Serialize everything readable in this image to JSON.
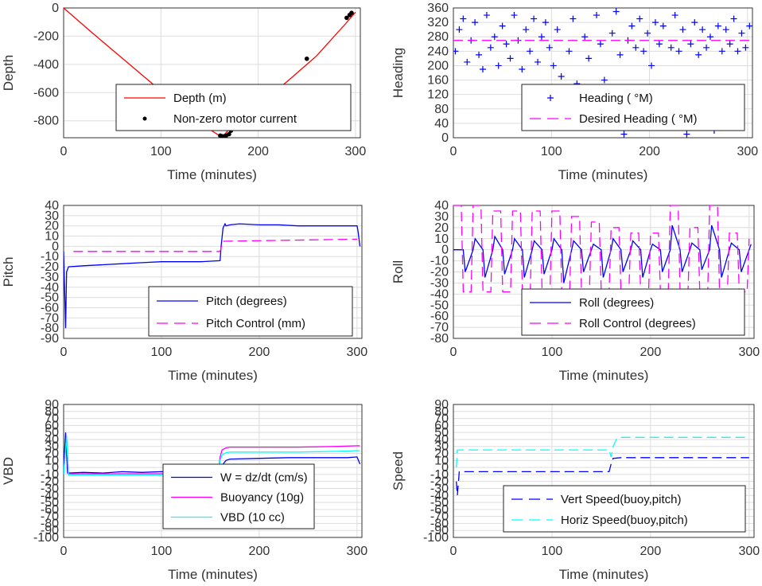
{
  "colors": {
    "depth": "#ff0000",
    "marker": "#000000",
    "primary": "#0000ff",
    "secondary": "#ff00ff",
    "tertiary": "#00ffff",
    "grid": "#dddddd",
    "axis": "#333333"
  },
  "chart_data": [
    {
      "id": "depth",
      "type": "line",
      "xlabel": "Time (minutes)",
      "ylabel": "Depth",
      "xlim": [
        0,
        305
      ],
      "ylim": [
        -920,
        0
      ],
      "xticks": [
        "0",
        "100",
        "200",
        "300"
      ],
      "yticks": [
        "0",
        "-200",
        "-400",
        "-600",
        "-800"
      ],
      "grid": true,
      "legend": {
        "placement": "lower-center",
        "entries": [
          "Depth (m)",
          "Non-zero motor current"
        ]
      },
      "series": [
        {
          "name": "Depth (m)",
          "style": "solid",
          "color": "#ff0000",
          "x": [
            0,
            30,
            60,
            90,
            120,
            150,
            160,
            165,
            170,
            200,
            230,
            260,
            290,
            300
          ],
          "y": [
            0,
            -180,
            -355,
            -530,
            -705,
            -860,
            -905,
            -900,
            -860,
            -690,
            -520,
            -340,
            -110,
            -30
          ]
        },
        {
          "name": "Non-zero motor current",
          "style": "marker",
          "color": "#000000",
          "x": [
            161,
            163,
            165,
            167,
            170,
            172,
            250,
            291,
            294,
            296
          ],
          "y": [
            -905,
            -910,
            -910,
            -905,
            -895,
            -870,
            -360,
            -70,
            -50,
            -35
          ]
        }
      ]
    },
    {
      "id": "heading",
      "type": "scatter",
      "xlabel": "Time (minutes)",
      "ylabel": "Heading",
      "xlim": [
        0,
        305
      ],
      "ylim": [
        0,
        360
      ],
      "xticks": [
        "0",
        "100",
        "200",
        "300"
      ],
      "yticks": [
        "0",
        "40",
        "80",
        "120",
        "160",
        "200",
        "240",
        "280",
        "320",
        "360"
      ],
      "grid": true,
      "legend": {
        "placement": "lower-center",
        "entries": [
          "Heading ( °M)",
          "Desired Heading ( °M)"
        ]
      },
      "series": [
        {
          "name": "Heading ( °M)",
          "style": "plus",
          "color": "#0000ff",
          "x": [
            2,
            6,
            10,
            14,
            18,
            22,
            26,
            30,
            34,
            38,
            42,
            46,
            50,
            54,
            58,
            62,
            66,
            70,
            74,
            78,
            82,
            86,
            90,
            94,
            98,
            102,
            106,
            110,
            114,
            118,
            122,
            126,
            130,
            134,
            138,
            142,
            146,
            150,
            154,
            158,
            162,
            166,
            170,
            174,
            178,
            182,
            186,
            190,
            194,
            198,
            202,
            206,
            210,
            214,
            218,
            222,
            226,
            230,
            234,
            238,
            242,
            246,
            250,
            254,
            258,
            262,
            266,
            270,
            274,
            278,
            282,
            286,
            290,
            294,
            298,
            302
          ],
          "y": [
            240,
            300,
            330,
            210,
            270,
            320,
            230,
            190,
            340,
            250,
            280,
            200,
            310,
            260,
            220,
            340,
            270,
            190,
            300,
            240,
            330,
            210,
            280,
            320,
            250,
            200,
            300,
            170,
            90,
            240,
            330,
            150,
            60,
            280,
            220,
            120,
            340,
            260,
            160,
            30,
            290,
            350,
            230,
            10,
            270,
            310,
            250,
            330,
            240,
            290,
            200,
            320,
            260,
            310,
            30,
            250,
            340,
            240,
            300,
            10,
            260,
            320,
            230,
            300,
            250,
            280,
            20,
            310,
            240,
            300,
            260,
            330,
            240,
            290,
            250,
            310
          ]
        },
        {
          "name": "Desired Heading ( °M)",
          "style": "dashed",
          "color": "#ff00ff",
          "x": [
            0,
            305
          ],
          "y": [
            270,
            270
          ]
        }
      ]
    },
    {
      "id": "pitch",
      "type": "line",
      "xlabel": "Time (minutes)",
      "ylabel": "Pitch",
      "xlim": [
        0,
        305
      ],
      "ylim": [
        -90,
        40
      ],
      "xticks": [
        "0",
        "100",
        "200",
        "300"
      ],
      "yticks": [
        "40",
        "30",
        "20",
        "10",
        "0",
        "-10",
        "-20",
        "-30",
        "-40",
        "-50",
        "-60",
        "-70",
        "-80",
        "-90"
      ],
      "grid": true,
      "legend": {
        "placement": "lower-right",
        "entries": [
          "Pitch (degrees)",
          "Pitch Control (mm)"
        ]
      },
      "series": [
        {
          "name": "Pitch (degrees)",
          "style": "solid",
          "color": "#0000ff",
          "x": [
            0,
            2,
            3,
            5,
            20,
            40,
            60,
            80,
            100,
            120,
            140,
            160,
            161,
            163,
            165,
            166,
            170,
            180,
            200,
            220,
            240,
            260,
            280,
            300,
            301,
            303
          ],
          "y": [
            -5,
            -80,
            -25,
            -20,
            -19,
            -18,
            -17,
            -16,
            -15,
            -15,
            -15,
            -14,
            0,
            18,
            22,
            20,
            21,
            22,
            21,
            21,
            20,
            20,
            20,
            20,
            15,
            0
          ]
        },
        {
          "name": "Pitch Control (mm)",
          "style": "dashed",
          "color": "#ff00ff",
          "x": [
            10,
            160,
            163,
            300
          ],
          "y": [
            -5,
            -5,
            5,
            7
          ]
        }
      ]
    },
    {
      "id": "roll",
      "type": "line",
      "xlabel": "Time (minutes)",
      "ylabel": "Roll",
      "xlim": [
        0,
        305
      ],
      "ylim": [
        -80,
        40
      ],
      "xticks": [
        "0",
        "100",
        "200",
        "300"
      ],
      "yticks": [
        "40",
        "30",
        "20",
        "10",
        "0",
        "-10",
        "-20",
        "-30",
        "-40",
        "-50",
        "-60",
        "-70",
        "-80"
      ],
      "grid": true,
      "legend": {
        "placement": "lower-right",
        "entries": [
          "Roll (degrees)",
          "Roll Control (degrees)"
        ]
      },
      "series": [
        {
          "name": "Roll (degrees)",
          "style": "solid",
          "color": "#0000ff",
          "x": [
            0,
            10,
            12,
            20,
            22,
            30,
            32,
            40,
            42,
            50,
            52,
            60,
            62,
            70,
            72,
            80,
            82,
            90,
            92,
            100,
            102,
            110,
            112,
            120,
            122,
            130,
            132,
            140,
            142,
            150,
            152,
            160,
            162,
            170,
            172,
            180,
            182,
            190,
            192,
            200,
            202,
            210,
            212,
            220,
            222,
            230,
            232,
            240,
            242,
            250,
            252,
            260,
            262,
            270,
            272,
            280,
            282,
            290,
            292,
            300,
            302
          ],
          "y": [
            0,
            0,
            -20,
            0,
            10,
            0,
            -25,
            0,
            12,
            0,
            -22,
            0,
            10,
            0,
            -25,
            0,
            8,
            0,
            -22,
            0,
            10,
            0,
            -30,
            0,
            8,
            0,
            -20,
            0,
            5,
            0,
            -25,
            0,
            10,
            0,
            -20,
            0,
            8,
            0,
            -25,
            0,
            5,
            0,
            -20,
            0,
            22,
            0,
            -20,
            0,
            6,
            0,
            -18,
            0,
            22,
            0,
            -25,
            0,
            6,
            0,
            -20,
            0,
            5
          ]
        },
        {
          "name": "Roll Control (degrees)",
          "style": "dashed",
          "color": "#ff00ff",
          "x": [
            0,
            8,
            10,
            18,
            20,
            28,
            30,
            38,
            40,
            48,
            50,
            58,
            60,
            68,
            70,
            78,
            80,
            88,
            90,
            98,
            100,
            108,
            110,
            118,
            120,
            128,
            130,
            138,
            140,
            148,
            150,
            158,
            160,
            168,
            170,
            178,
            180,
            188,
            190,
            198,
            200,
            208,
            210,
            218,
            220,
            228,
            230,
            238,
            240,
            248,
            250,
            258,
            260,
            268,
            270,
            278,
            280,
            288,
            290,
            298,
            300
          ],
          "y": [
            40,
            40,
            -38,
            -38,
            40,
            40,
            -38,
            -38,
            35,
            35,
            -38,
            -38,
            35,
            35,
            -38,
            -38,
            35,
            35,
            -38,
            -38,
            35,
            35,
            -38,
            -38,
            30,
            30,
            -38,
            -38,
            25,
            25,
            -38,
            -38,
            20,
            20,
            -38,
            -38,
            15,
            15,
            -38,
            -38,
            15,
            15,
            -38,
            -38,
            40,
            40,
            -38,
            -38,
            20,
            20,
            -38,
            -38,
            40,
            40,
            -38,
            -38,
            15,
            15,
            -38,
            -38,
            10
          ]
        }
      ]
    },
    {
      "id": "vbd",
      "type": "line",
      "xlabel": "Time (minutes)",
      "ylabel": "VBD",
      "xlim": [
        0,
        305
      ],
      "ylim": [
        -100,
        90
      ],
      "xticks": [
        "0",
        "100",
        "200",
        "300"
      ],
      "yticks": [
        "90",
        "80",
        "70",
        "60",
        "50",
        "40",
        "30",
        "20",
        "10",
        "0",
        "-10",
        "-20",
        "-30",
        "-40",
        "-50",
        "-60",
        "-70",
        "-80",
        "-90",
        "-100"
      ],
      "grid": true,
      "legend": {
        "placement": "lower-center",
        "entries": [
          "W = dz/dt (cm/s)",
          "Buoyancy (10g)",
          "VBD (10 cc)"
        ]
      },
      "series": [
        {
          "name": "W = dz/dt (cm/s)",
          "style": "solid",
          "color": "#0000ff",
          "x": [
            0,
            2,
            4,
            20,
            40,
            60,
            80,
            100,
            120,
            140,
            158,
            160,
            162,
            166,
            170,
            200,
            230,
            260,
            290,
            300,
            303
          ],
          "y": [
            0,
            50,
            -8,
            -7,
            -8,
            -6,
            -7,
            -6,
            -7,
            -7,
            -8,
            0,
            3,
            10,
            12,
            13,
            14,
            14,
            14,
            15,
            5
          ]
        },
        {
          "name": "Buoyancy (10g)",
          "style": "solid",
          "color": "#ff00ff",
          "x": [
            0,
            3,
            5,
            40,
            80,
            120,
            158,
            160,
            162,
            166,
            170,
            200,
            240,
            280,
            300,
            303
          ],
          "y": [
            -10,
            45,
            -9,
            -9,
            -9,
            -9,
            -9,
            15,
            25,
            28,
            29,
            29,
            29,
            30,
            31,
            31
          ]
        },
        {
          "name": "VBD (10 cc)",
          "style": "solid",
          "color": "#00ffff",
          "x": [
            0,
            3,
            5,
            40,
            80,
            120,
            158,
            160,
            162,
            166,
            170,
            200,
            240,
            280,
            300,
            303
          ],
          "y": [
            -10,
            45,
            -11,
            -11,
            -11,
            -11,
            -11,
            10,
            18,
            21,
            22,
            22,
            22,
            23,
            24,
            24
          ]
        }
      ]
    },
    {
      "id": "speed",
      "type": "line",
      "xlabel": "Time (minutes)",
      "ylabel": "Speed",
      "xlim": [
        0,
        305
      ],
      "ylim": [
        -100,
        90
      ],
      "xticks": [
        "0",
        "100",
        "200",
        "300"
      ],
      "yticks": [
        "90",
        "80",
        "70",
        "60",
        "50",
        "40",
        "30",
        "20",
        "10",
        "0",
        "-10",
        "-20",
        "-30",
        "-40",
        "-50",
        "-60",
        "-70",
        "-80",
        "-90",
        "-100"
      ],
      "grid": true,
      "legend": {
        "placement": "lower-right",
        "entries": [
          "Vert Speed(buoy,pitch)",
          "Horiz Speed(buoy,pitch)"
        ]
      },
      "series": [
        {
          "name": "Vert Speed(buoy,pitch)",
          "style": "dashed",
          "color": "#0000ff",
          "x": [
            3,
            4,
            6,
            40,
            80,
            120,
            158,
            160,
            162,
            170,
            200,
            240,
            280,
            300
          ],
          "y": [
            -20,
            -40,
            -6,
            -6,
            -6,
            -6,
            -6,
            5,
            13,
            14,
            14,
            14,
            14,
            14
          ]
        },
        {
          "name": "Horiz Speed(buoy,pitch)",
          "style": "dashed",
          "color": "#00ffff",
          "x": [
            3,
            4,
            6,
            40,
            80,
            120,
            158,
            160,
            162,
            166,
            170,
            200,
            240,
            280,
            300
          ],
          "y": [
            0,
            25,
            25,
            25,
            25,
            25,
            25,
            15,
            30,
            42,
            43,
            43,
            43,
            43,
            43
          ]
        }
      ]
    }
  ]
}
